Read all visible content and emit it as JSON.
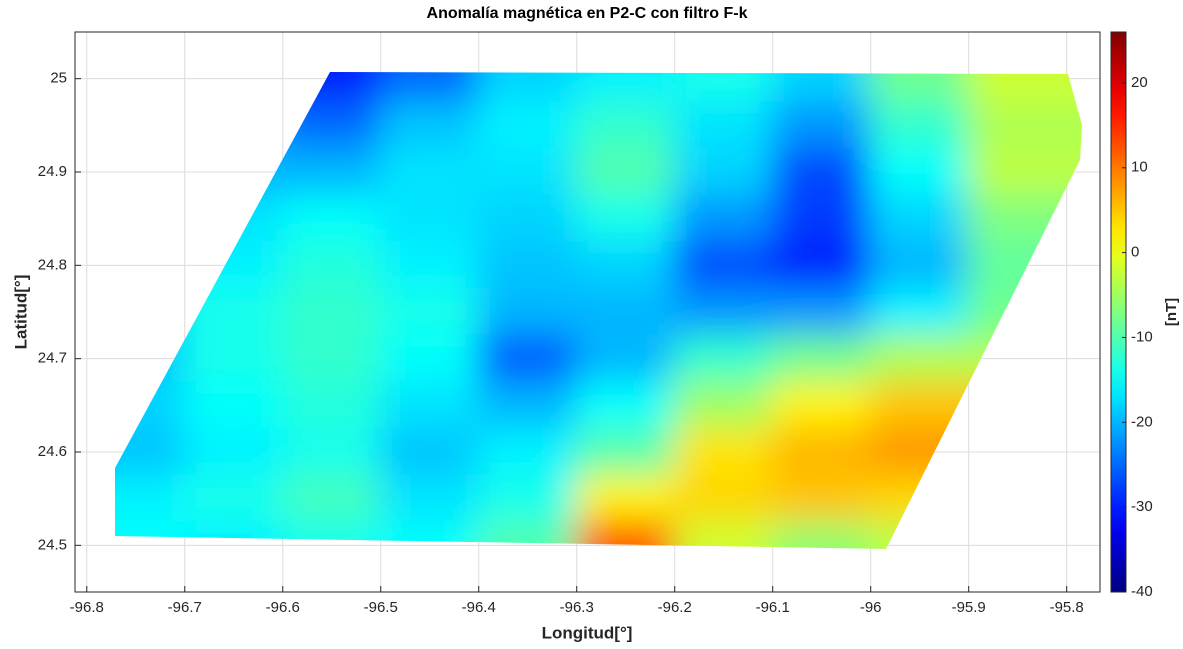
{
  "chart_data": {
    "type": "contour",
    "title": "Anomalía magnética en P2-C con filtro F-k",
    "x_label": "Longitud[°]",
    "y_label": "Latitud[°]",
    "colorbar_label": "[nT]",
    "x": [
      -96.75,
      -96.65,
      -96.55,
      -96.45,
      -96.35,
      -96.25,
      -96.15,
      -96.05,
      -95.95,
      -95.85
    ],
    "y": [
      25.0,
      24.95,
      24.9,
      24.85,
      24.8,
      24.75,
      24.7,
      24.65,
      24.6,
      24.55,
      24.5
    ],
    "z": [
      [
        -22,
        -25,
        -30,
        -25,
        -18,
        -16,
        -14,
        -18,
        -8,
        -2
      ],
      [
        -20,
        -22,
        -25,
        -19,
        -16,
        -12,
        -17,
        -22,
        -12,
        -4
      ],
      [
        -18,
        -20,
        -20,
        -17,
        -17,
        -10,
        -18,
        -27,
        -15,
        -3
      ],
      [
        -17,
        -17,
        -15,
        -17,
        -18,
        -14,
        -22,
        -28,
        -18,
        -7
      ],
      [
        -17,
        -16,
        -13,
        -16,
        -19,
        -18,
        -27,
        -30,
        -20,
        -9
      ],
      [
        -18,
        -14,
        -12,
        -14,
        -20,
        -20,
        -22,
        -22,
        -16,
        -8
      ],
      [
        -19,
        -14,
        -12,
        -15,
        -26,
        -20,
        -12,
        -8,
        -4,
        -4
      ],
      [
        -18,
        -15,
        -13,
        -17,
        -20,
        -15,
        -5,
        2,
        5,
        5
      ],
      [
        -19,
        -16,
        -14,
        -19,
        -16,
        -10,
        3,
        6,
        8,
        8
      ],
      [
        -16,
        -14,
        -11,
        -17,
        -14,
        2,
        4,
        5,
        4,
        4
      ],
      [
        -15,
        -16,
        -14,
        -15,
        -10,
        12,
        -2,
        -6,
        -3,
        -3
      ]
    ],
    "xlim": [
      -96.812,
      -95.766
    ],
    "ylim": [
      24.45,
      25.05
    ],
    "xticks": [
      -96.8,
      -96.7,
      -96.6,
      -96.5,
      -96.4,
      -96.3,
      -96.2,
      -96.1,
      -96,
      -95.9,
      -95.8
    ],
    "yticks": [
      24.5,
      24.6,
      24.7,
      24.8,
      24.9,
      25
    ],
    "clim": [
      -40,
      26
    ],
    "cticks": [
      -40,
      -30,
      -20,
      -10,
      0,
      10,
      20
    ],
    "colormap": "jet",
    "grid": true
  }
}
